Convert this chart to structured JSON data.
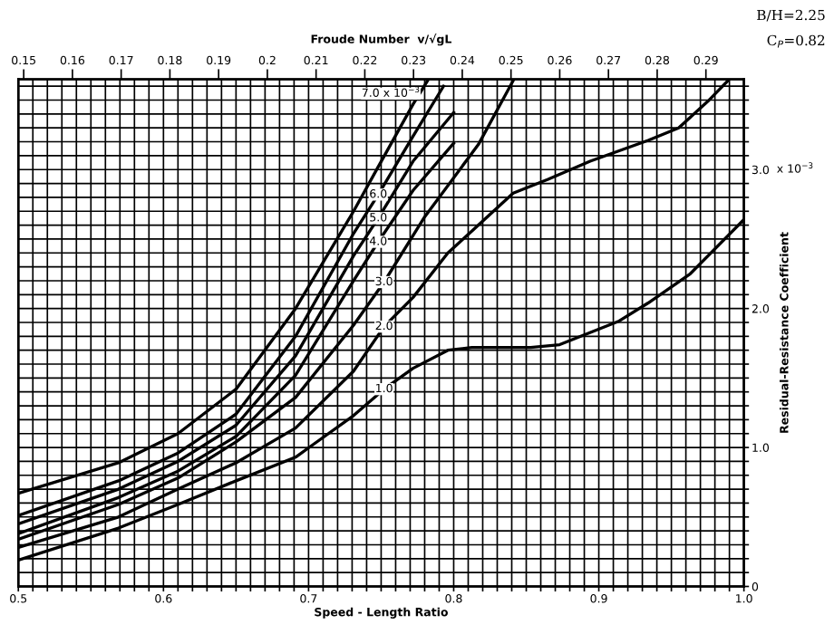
{
  "chart_data": {
    "type": "line",
    "xlabel": "Speed - Length Ratio",
    "ylabel": "Residual-Resistance Coefficient",
    "x2label": "Froude Number  v/√gL",
    "annotations": [
      "B/H=2.25",
      "C$_{P}$=0.82",
      "x 10$^{−3}$",
      {
        "text": "7.0 x 10$^{−3}$",
        "x": 0.782,
        "y": 3.64
      },
      {
        "text": "6.0",
        "x": 0.748,
        "y": 2.82
      },
      {
        "text": "5.0",
        "x": 0.748,
        "y": 2.65
      },
      {
        "text": "4.0",
        "x": 0.748,
        "y": 2.48
      },
      {
        "text": "3.0",
        "x": 0.752,
        "y": 2.19
      },
      {
        "text": "2.0",
        "x": 0.752,
        "y": 1.87
      },
      {
        "text": "1.0",
        "x": 0.752,
        "y": 1.42
      }
    ],
    "series": [
      {
        "color": "#000000",
        "x": [
          0.5,
          0.569,
          0.61,
          0.65,
          0.691,
          0.731,
          0.748,
          0.772,
          0.782
        ],
        "values": [
          0.67,
          0.89,
          1.1,
          1.42,
          2.0,
          2.7,
          3.02,
          3.47,
          3.64
        ]
      },
      {
        "color": "#000000",
        "x": [
          0.5,
          0.569,
          0.61,
          0.65,
          0.691,
          0.731,
          0.748,
          0.772,
          0.793
        ],
        "values": [
          0.51,
          0.76,
          0.96,
          1.24,
          1.8,
          2.54,
          2.82,
          3.24,
          3.6
        ]
      },
      {
        "color": "#000000",
        "x": [
          0.5,
          0.569,
          0.61,
          0.65,
          0.691,
          0.731,
          0.748,
          0.772,
          0.8
        ],
        "values": [
          0.45,
          0.7,
          0.9,
          1.16,
          1.66,
          2.38,
          2.65,
          3.06,
          3.41
        ]
      },
      {
        "color": "#000000",
        "x": [
          0.5,
          0.569,
          0.61,
          0.65,
          0.691,
          0.731,
          0.748,
          0.772,
          0.8
        ],
        "values": [
          0.38,
          0.64,
          0.83,
          1.08,
          1.52,
          2.2,
          2.48,
          2.85,
          3.19
        ]
      },
      {
        "color": "#000000",
        "x": [
          0.5,
          0.569,
          0.61,
          0.65,
          0.691,
          0.731,
          0.752,
          0.78,
          0.817,
          0.841
        ],
        "values": [
          0.34,
          0.59,
          0.78,
          1.04,
          1.36,
          1.88,
          2.19,
          2.66,
          3.18,
          3.64
        ]
      },
      {
        "color": "#000000",
        "x": [
          0.5,
          0.569,
          0.61,
          0.65,
          0.691,
          0.731,
          0.752,
          0.772,
          0.796,
          0.817,
          0.841,
          0.865,
          0.894,
          0.934,
          0.955,
          0.975,
          0.989
        ],
        "values": [
          0.28,
          0.5,
          0.7,
          0.89,
          1.14,
          1.55,
          1.87,
          2.08,
          2.4,
          2.6,
          2.83,
          2.93,
          3.06,
          3.21,
          3.3,
          3.49,
          3.64
        ]
      },
      {
        "color": "#000000",
        "x": [
          0.5,
          0.569,
          0.61,
          0.65,
          0.691,
          0.703,
          0.731,
          0.752,
          0.772,
          0.796,
          0.8125,
          0.853,
          0.873,
          0.914,
          0.934,
          0.963,
          1.0
        ],
        "values": [
          0.19,
          0.42,
          0.59,
          0.76,
          0.93,
          1.02,
          1.23,
          1.42,
          1.57,
          1.7,
          1.72,
          1.72,
          1.74,
          1.91,
          2.04,
          2.25,
          2.64
        ]
      }
    ],
    "xlim": [
      0.5,
      1.0
    ],
    "ylim": [
      0,
      3.65
    ],
    "xticks": [
      {
        "value": 0.5,
        "label": "0.5"
      },
      {
        "value": 0.51,
        "label": null
      },
      {
        "value": 0.52,
        "label": null
      },
      {
        "value": 0.53,
        "label": null
      },
      {
        "value": 0.54,
        "label": null
      },
      {
        "value": 0.55,
        "label": null
      },
      {
        "value": 0.56,
        "label": null
      },
      {
        "value": 0.57,
        "label": null
      },
      {
        "value": 0.58,
        "label": null
      },
      {
        "value": 0.59,
        "label": null
      },
      {
        "value": 0.6,
        "label": "0.6"
      },
      {
        "value": 0.61,
        "label": null
      },
      {
        "value": 0.62,
        "label": null
      },
      {
        "value": 0.63,
        "label": null
      },
      {
        "value": 0.64,
        "label": null
      },
      {
        "value": 0.65,
        "label": null
      },
      {
        "value": 0.66,
        "label": null
      },
      {
        "value": 0.67,
        "label": null
      },
      {
        "value": 0.68,
        "label": null
      },
      {
        "value": 0.69,
        "label": null
      },
      {
        "value": 0.7,
        "label": "0.7"
      },
      {
        "value": 0.71,
        "label": null
      },
      {
        "value": 0.72,
        "label": null
      },
      {
        "value": 0.73,
        "label": null
      },
      {
        "value": 0.74,
        "label": null
      },
      {
        "value": 0.75,
        "label": null
      },
      {
        "value": 0.76,
        "label": null
      },
      {
        "value": 0.77,
        "label": null
      },
      {
        "value": 0.78,
        "label": null
      },
      {
        "value": 0.79,
        "label": null
      },
      {
        "value": 0.8,
        "label": "0.8"
      },
      {
        "value": 0.81,
        "label": null
      },
      {
        "value": 0.82,
        "label": null
      },
      {
        "value": 0.83,
        "label": null
      },
      {
        "value": 0.84,
        "label": null
      },
      {
        "value": 0.85,
        "label": null
      },
      {
        "value": 0.86,
        "label": null
      },
      {
        "value": 0.87,
        "label": null
      },
      {
        "value": 0.88,
        "label": null
      },
      {
        "value": 0.89,
        "label": null
      },
      {
        "value": 0.9,
        "label": "0.9"
      },
      {
        "value": 0.91,
        "label": null
      },
      {
        "value": 0.92,
        "label": null
      },
      {
        "value": 0.93,
        "label": null
      },
      {
        "value": 0.94,
        "label": null
      },
      {
        "value": 0.95,
        "label": null
      },
      {
        "value": 0.96,
        "label": null
      },
      {
        "value": 0.97,
        "label": null
      },
      {
        "value": 0.98,
        "label": null
      },
      {
        "value": 0.99,
        "label": null
      },
      {
        "value": 1.0,
        "label": "1.0"
      }
    ],
    "yticks": [
      0,
      {
        "value": 0.1,
        "label": null
      },
      {
        "value": 0.2,
        "label": null
      },
      {
        "value": 0.3,
        "label": null
      },
      {
        "value": 0.4,
        "label": null
      },
      {
        "value": 0.5,
        "label": null
      },
      {
        "value": 0.6,
        "label": null
      },
      {
        "value": 0.7,
        "label": null
      },
      {
        "value": 0.8,
        "label": null
      },
      {
        "value": 0.9,
        "label": null
      },
      {
        "value": 1.0,
        "label": "1.0"
      },
      {
        "value": 1.1,
        "label": null
      },
      {
        "value": 1.2,
        "label": null
      },
      {
        "value": 1.3,
        "label": null
      },
      {
        "value": 1.4,
        "label": null
      },
      {
        "value": 1.5,
        "label": null
      },
      {
        "value": 1.6,
        "label": null
      },
      {
        "value": 1.7,
        "label": null
      },
      {
        "value": 1.8,
        "label": null
      },
      {
        "value": 1.9,
        "label": null
      },
      {
        "value": 2.0,
        "label": "2.0"
      },
      {
        "value": 2.1,
        "label": null
      },
      {
        "value": 2.2,
        "label": null
      },
      {
        "value": 2.3,
        "label": null
      },
      {
        "value": 2.4,
        "label": null
      },
      {
        "value": 2.5,
        "label": null
      },
      {
        "value": 2.6,
        "label": null
      },
      {
        "value": 2.7,
        "label": null
      },
      {
        "value": 2.8,
        "label": null
      },
      {
        "value": 2.9,
        "label": null
      },
      {
        "value": 3.0,
        "label": "3.0"
      },
      {
        "value": 3.1,
        "label": null
      },
      {
        "value": 3.2,
        "label": null
      },
      {
        "value": 3.3,
        "label": null
      },
      {
        "value": 3.4,
        "label": null
      },
      {
        "value": 3.5,
        "label": null
      },
      {
        "value": 3.6,
        "label": null
      }
    ],
    "x2lim": [
      0.1489,
      0.2978
    ],
    "x2ticks": [
      0.15,
      0.16,
      0.17,
      0.18,
      0.19,
      0.2,
      0.21,
      0.22,
      0.23,
      0.24,
      0.25,
      0.26,
      0.27,
      0.28,
      0.29
    ],
    "grid": true,
    "legend": false,
    "marker": "none",
    "line_style": "solid"
  }
}
